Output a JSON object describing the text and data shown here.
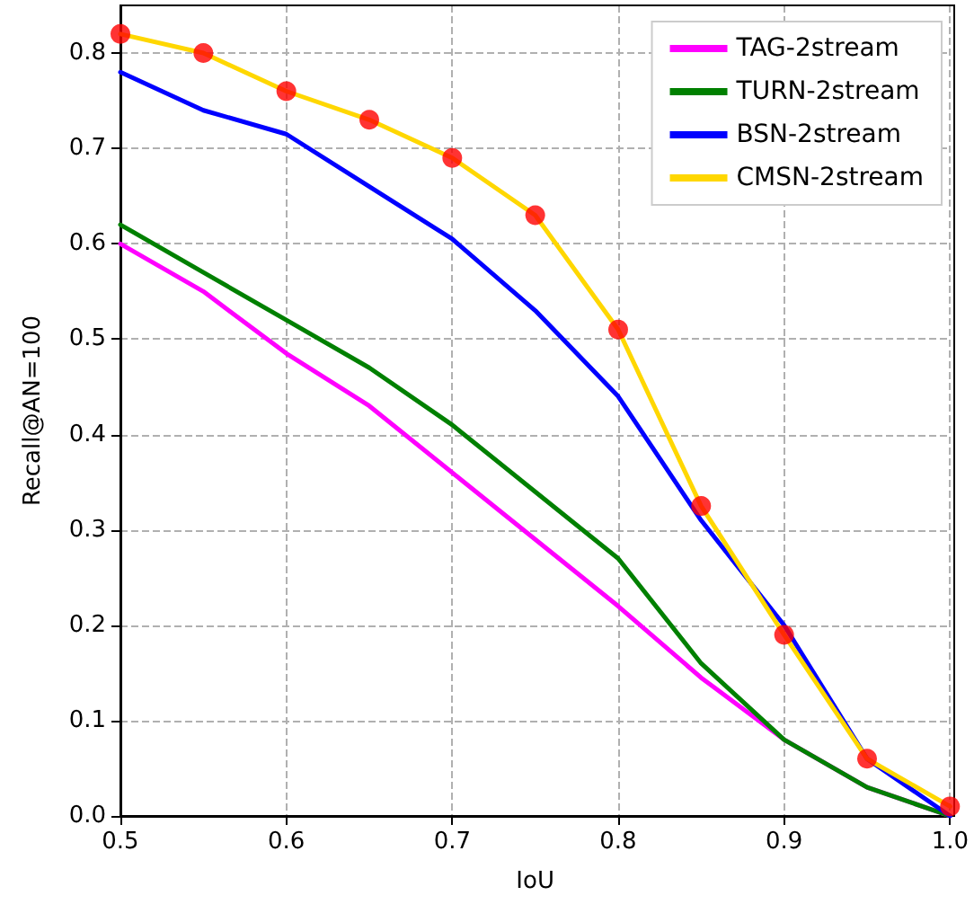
{
  "chart_data": {
    "type": "line",
    "xlabel": "IoU",
    "ylabel": "Recall@AN=100",
    "x": [
      0.5,
      0.55,
      0.6,
      0.65,
      0.7,
      0.75,
      0.8,
      0.85,
      0.9,
      0.95,
      1.0
    ],
    "series": [
      {
        "name": "TAG-2stream",
        "color": "#ff00ff",
        "values": [
          0.6,
          0.55,
          0.485,
          0.43,
          0.36,
          0.29,
          0.22,
          0.145,
          0.08,
          0.03,
          0.0
        ]
      },
      {
        "name": "TURN-2stream",
        "color": "#008000",
        "values": [
          0.62,
          0.57,
          0.52,
          0.47,
          0.41,
          0.34,
          0.27,
          0.16,
          0.08,
          0.03,
          0.0
        ]
      },
      {
        "name": "BSN-2stream",
        "color": "#0000ff",
        "values": [
          0.78,
          0.74,
          0.715,
          0.66,
          0.605,
          0.53,
          0.44,
          0.31,
          0.2,
          0.06,
          0.0
        ]
      },
      {
        "name": "CMSN-2stream",
        "color": "#ffd700",
        "values": [
          0.82,
          0.8,
          0.76,
          0.73,
          0.69,
          0.63,
          0.51,
          0.325,
          0.19,
          0.06,
          0.01
        ]
      },
      {
        "type": "scatter",
        "color": "#ff0000",
        "marker": "circle",
        "values": [
          0.82,
          0.8,
          0.76,
          0.73,
          0.69,
          0.63,
          0.51,
          0.325,
          0.19,
          0.06,
          0.01
        ]
      }
    ],
    "xlim": [
      0.5,
      1.0
    ],
    "xticks": [
      0.5,
      0.6,
      0.7,
      0.8,
      0.9,
      {
        "value": 1,
        "label": "1.0"
      }
    ],
    "ylim": [
      0,
      0.85
    ],
    "yticks": [
      {
        "value": 0,
        "label": "0.0"
      },
      0.1,
      0.2,
      0.3,
      0.4,
      0.5,
      0.6,
      0.7,
      0.8
    ],
    "grid": true,
    "legend": "top right",
    "line_style": "solid",
    "marker": "none"
  }
}
